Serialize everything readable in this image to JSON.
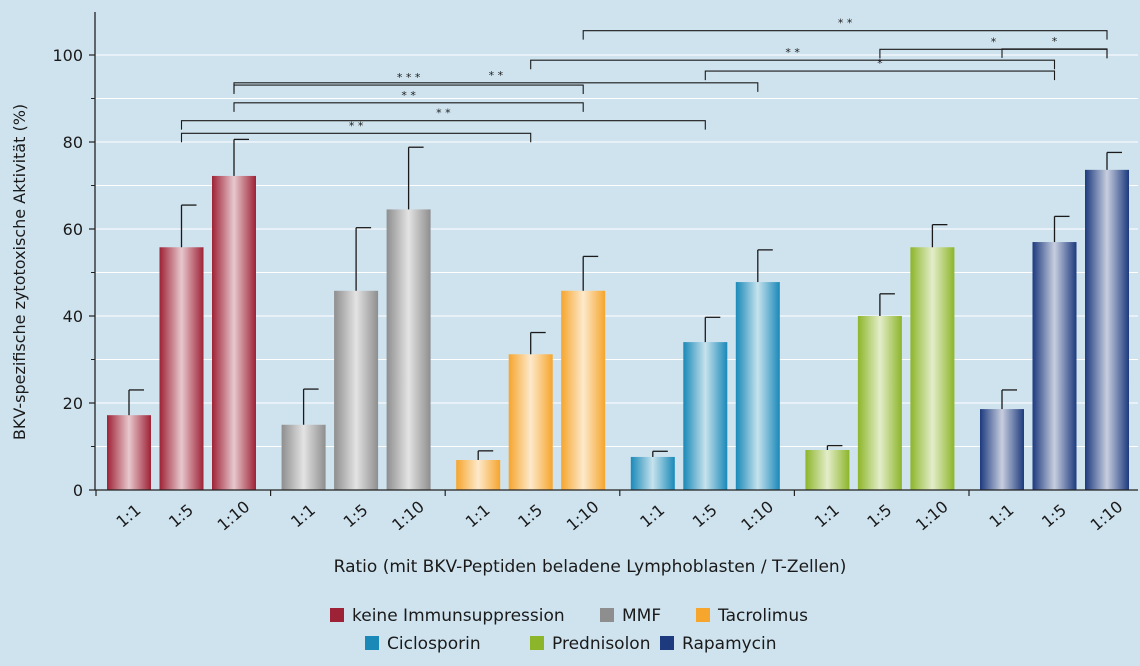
{
  "chart_data": {
    "type": "bar",
    "ylabel": "BKV-spezifische zytotoxische Aktivität (%)",
    "xlabel": "Ratio (mit BKV-Peptiden beladene Lymphoblasten / T-Zellen)",
    "ylim": [
      0,
      110
    ],
    "yticks": [
      0,
      20,
      40,
      60,
      80,
      100
    ],
    "minor_yticks": [
      10,
      30,
      50,
      70,
      90
    ],
    "grid": true,
    "legend_position": "bottom-center",
    "categories": [
      "1:1",
      "1:5",
      "1:10"
    ],
    "series": [
      {
        "name": "keine Immunsuppression",
        "color": "#9e2236",
        "values": [
          17.2,
          55.8,
          72.2
        ],
        "errors": [
          5.8,
          9.7,
          8.4
        ]
      },
      {
        "name": "MMF",
        "color": "#8e8e8e",
        "values": [
          15.0,
          45.8,
          64.5
        ],
        "errors": [
          8.2,
          14.5,
          14.3
        ]
      },
      {
        "name": "Tacrolimus",
        "color": "#f6a52d",
        "values": [
          6.9,
          31.2,
          45.8
        ],
        "errors": [
          2.1,
          5.0,
          7.9
        ]
      },
      {
        "name": "Ciclosporin",
        "color": "#1a89b8",
        "values": [
          7.6,
          34.0,
          47.8
        ],
        "errors": [
          1.3,
          5.7,
          7.4
        ]
      },
      {
        "name": "Prednisolon",
        "color": "#8db52a",
        "values": [
          9.2,
          40.0,
          55.8
        ],
        "errors": [
          1.0,
          5.1,
          5.2
        ]
      },
      {
        "name": "Rapamycin",
        "color": "#1d3a7e",
        "values": [
          18.6,
          57.0,
          73.6
        ],
        "errors": [
          4.4,
          5.9,
          4.0
        ]
      }
    ],
    "significance": [
      {
        "from": [
          0,
          1
        ],
        "to": [
          2,
          1
        ],
        "label": "* *",
        "y": 82.0
      },
      {
        "from": [
          0,
          1
        ],
        "to": [
          3,
          1
        ],
        "label": "* *",
        "y": 84.9
      },
      {
        "from": [
          0,
          2
        ],
        "to": [
          2,
          2
        ],
        "label": "* *",
        "y": 89.0
      },
      {
        "from": [
          0,
          2
        ],
        "to": [
          2,
          2
        ],
        "label": "* * *",
        "y": 93.1
      },
      {
        "from": [
          0,
          2
        ],
        "to": [
          3,
          2
        ],
        "label": "* *",
        "y": 93.6
      },
      {
        "from": [
          2,
          1
        ],
        "to": [
          5,
          1
        ],
        "label": "* *",
        "y": 98.8
      },
      {
        "from": [
          3,
          1
        ],
        "to": [
          5,
          1
        ],
        "label": "*",
        "y": 96.3
      },
      {
        "from": [
          2,
          2
        ],
        "to": [
          5,
          2
        ],
        "label": "* *",
        "y": 105.6
      },
      {
        "from": [
          4,
          1
        ],
        "to": [
          5,
          2
        ],
        "label": "*",
        "y": 101.3
      },
      {
        "from": [
          5,
          0
        ],
        "to": [
          5,
          2
        ],
        "label": "*",
        "y": 101.4
      }
    ]
  }
}
